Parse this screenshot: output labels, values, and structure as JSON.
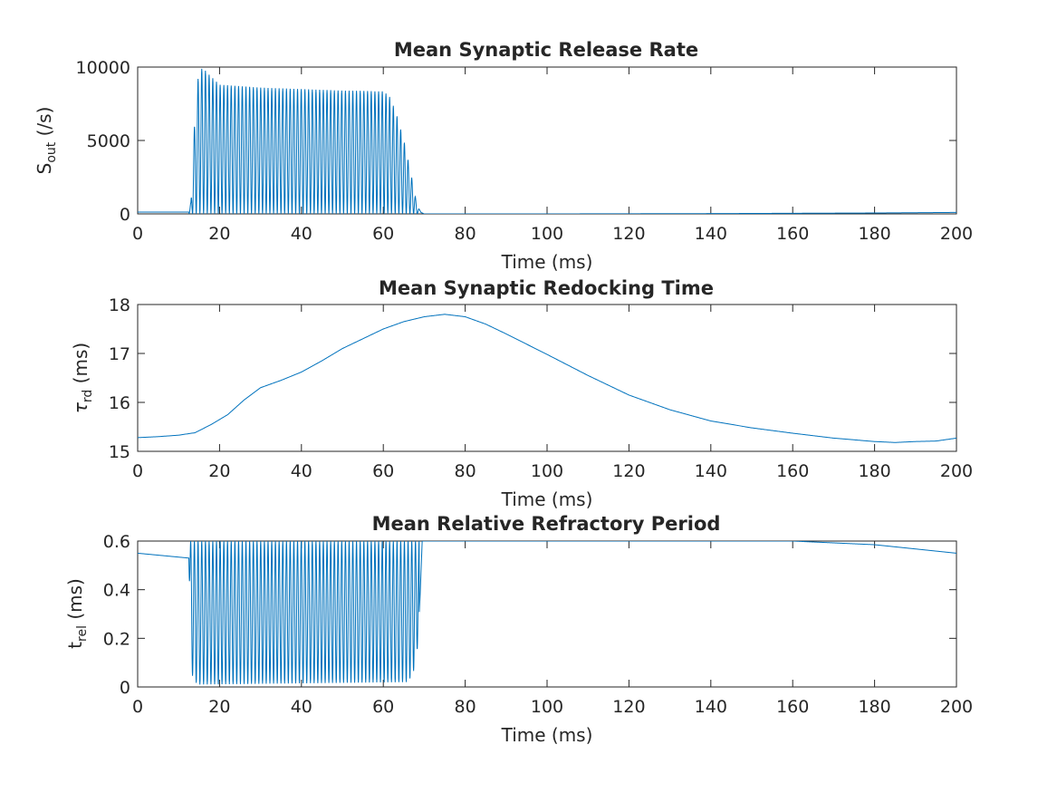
{
  "chart_data": [
    {
      "type": "line",
      "title": "Mean Synaptic Release Rate",
      "xlabel": "Time (ms)",
      "ylabel": {
        "base": "S",
        "sub": "out",
        "rest": " (/s)"
      },
      "xlim": [
        0,
        200
      ],
      "ylim": [
        0,
        10000
      ],
      "xticks": [
        0,
        20,
        40,
        60,
        80,
        100,
        120,
        140,
        160,
        180,
        200
      ],
      "yticks": [
        0,
        5000,
        10000
      ],
      "series_color": "#0072BD",
      "series": [
        {
          "name": "S_out",
          "x": [
            0,
            12.5,
            13.0,
            13.5,
            14.5,
            15.8,
            17,
            20,
            25,
            30,
            35,
            40,
            45,
            50,
            55,
            58,
            60,
            61.5,
            63,
            64.5,
            65.5,
            66.5,
            67.3,
            68,
            68.6,
            69.2,
            70,
            100,
            140,
            180,
            200
          ],
          "y": [
            120,
            120,
            800,
            4200,
            9000,
            10000,
            9600,
            8800,
            8700,
            8600,
            8550,
            8500,
            8450,
            8400,
            8380,
            8350,
            8350,
            8000,
            7000,
            5500,
            4500,
            3000,
            2000,
            900,
            400,
            100,
            0,
            0,
            20,
            60,
            100
          ],
          "oscillation": {
            "x_start": 12.5,
            "x_end": 68.8,
            "period_ms": 0.9,
            "min": 0
          }
        }
      ]
    },
    {
      "type": "line",
      "title": "Mean Synaptic Redocking Time",
      "xlabel": "Time (ms)",
      "ylabel": {
        "base": "τ",
        "sub": "rd",
        "rest": " (ms)"
      },
      "xlim": [
        0,
        200
      ],
      "ylim": [
        15,
        18
      ],
      "xticks": [
        0,
        20,
        40,
        60,
        80,
        100,
        120,
        140,
        160,
        180,
        200
      ],
      "yticks": [
        15,
        16,
        17,
        18
      ],
      "series_color": "#0072BD",
      "series": [
        {
          "name": "tau_rd",
          "x": [
            0,
            5,
            10,
            14,
            18,
            22,
            26,
            30,
            35,
            40,
            45,
            50,
            55,
            60,
            65,
            70,
            75,
            80,
            85,
            90,
            100,
            110,
            120,
            130,
            140,
            150,
            160,
            170,
            180,
            185,
            190,
            195,
            200
          ],
          "y": [
            15.28,
            15.3,
            15.33,
            15.38,
            15.55,
            15.75,
            16.05,
            16.3,
            16.45,
            16.62,
            16.85,
            17.1,
            17.3,
            17.5,
            17.65,
            17.75,
            17.8,
            17.75,
            17.6,
            17.4,
            16.98,
            16.55,
            16.15,
            15.85,
            15.62,
            15.48,
            15.37,
            15.27,
            15.2,
            15.18,
            15.2,
            15.21,
            15.27
          ]
        }
      ]
    },
    {
      "type": "line",
      "title": "Mean Relative Refractory Period",
      "xlabel": "Time (ms)",
      "ylabel": {
        "base": "t",
        "sub": "rel",
        "rest": " (ms)"
      },
      "xlim": [
        0,
        200
      ],
      "ylim": [
        0,
        0.6
      ],
      "xticks": [
        0,
        20,
        40,
        60,
        80,
        100,
        120,
        140,
        160,
        180,
        200
      ],
      "yticks": [
        0,
        0.2,
        0.4,
        0.6
      ],
      "series_color": "#0072BD",
      "series": [
        {
          "name": "t_rel",
          "x": [
            0,
            12.5,
            12.9,
            13.3,
            14,
            15,
            66,
            67,
            68,
            68.5,
            69,
            69.5,
            160,
            180,
            200
          ],
          "y": [
            0.55,
            0.53,
            0.13,
            0.05,
            0.02,
            0.01,
            0.02,
            0.05,
            0.09,
            0.2,
            0.38,
            0.6,
            0.6,
            0.585,
            0.55
          ],
          "oscillation": {
            "x_start": 12.5,
            "x_end": 68.8,
            "period_ms": 0.9,
            "max": 0.6
          }
        }
      ]
    }
  ]
}
